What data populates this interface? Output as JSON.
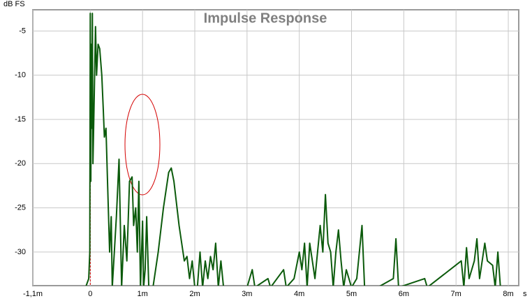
{
  "chart_data": {
    "type": "line",
    "title": "Impulse Response",
    "y_unit": "dB FS",
    "x_unit": "s",
    "color": "#0b5a0b",
    "grid": true,
    "xlim": [
      -1.1,
      8.2
    ],
    "ylim": [
      -33.8,
      -2.6
    ],
    "xticks": [
      {
        "value": -1.1,
        "label": "-1,1m"
      },
      0,
      {
        "value": 1,
        "label": "1m"
      },
      {
        "value": 2,
        "label": "2m"
      },
      {
        "value": 3,
        "label": "3m"
      },
      {
        "value": 4,
        "label": "4m"
      },
      {
        "value": 5,
        "label": "5m"
      },
      {
        "value": 6,
        "label": "6m"
      },
      {
        "value": 7,
        "label": "7m"
      },
      {
        "value": 8,
        "label": "8m"
      }
    ],
    "yticks": [
      -5,
      -10,
      -15,
      -20,
      -25,
      -30
    ],
    "x": [
      -0.09,
      -0.03,
      -0.01,
      0,
      0.01,
      0.02,
      0.03,
      0.04,
      0.05,
      0.07,
      0.1,
      0.12,
      0.15,
      0.18,
      0.22,
      0.25,
      0.27,
      0.3,
      0.33,
      0.37,
      0.4,
      0.42,
      0.5,
      0.55,
      0.58,
      0.6,
      0.65,
      0.7,
      0.75,
      0.8,
      0.83,
      0.87,
      0.9,
      0.93,
      0.96,
      1.0,
      1.02,
      1.05,
      1.08,
      1.12,
      1.2,
      1.3,
      1.4,
      1.5,
      1.55,
      1.6,
      1.7,
      1.8,
      1.85,
      1.9,
      1.95,
      2.0,
      2.05,
      2.1,
      2.15,
      2.2,
      2.25,
      2.3,
      2.35,
      2.4,
      2.45,
      2.5,
      2.55,
      3.0,
      3.1,
      3.15,
      3.4,
      3.45,
      3.7,
      3.75,
      3.9,
      4.0,
      4.05,
      4.1,
      4.15,
      4.2,
      4.25,
      4.3,
      4.4,
      4.45,
      4.5,
      4.55,
      4.6,
      4.65,
      4.7,
      4.75,
      4.8,
      4.85,
      4.9,
      5.0,
      5.1,
      5.2,
      5.25,
      5.5,
      5.8,
      5.85,
      5.9,
      6.4,
      6.45,
      7.1,
      7.15,
      7.2,
      7.25,
      7.35,
      7.4,
      7.45,
      7.55,
      7.6,
      7.7,
      7.75,
      7.8,
      7.85,
      8.2
    ],
    "values": [
      -34,
      -33,
      -30,
      -3,
      -22,
      -6.5,
      -16,
      -3,
      -20,
      -14,
      -4.5,
      -10,
      -6.5,
      -7,
      -10,
      -14,
      -17,
      -16,
      -22,
      -30,
      -26,
      -34,
      -26,
      -19.5,
      -28,
      -34,
      -27,
      -31,
      -22,
      -21.5,
      -27,
      -25,
      -30,
      -22,
      -34,
      -26.5,
      -34,
      -32,
      -26,
      -34,
      -34,
      -30,
      -25,
      -21,
      -20.5,
      -22,
      -27,
      -31,
      -30.5,
      -33,
      -31,
      -34,
      -34,
      -30,
      -34,
      -31,
      -33,
      -30.5,
      -32,
      -29,
      -34,
      -31,
      -34,
      -34,
      -32,
      -34,
      -33,
      -34,
      -32,
      -34,
      -33,
      -30,
      -32,
      -29,
      -34,
      -29,
      -31,
      -33,
      -27,
      -30,
      -23.5,
      -29,
      -30,
      -34,
      -30,
      -27.5,
      -31,
      -34,
      -32,
      -34,
      -33,
      -27,
      -34,
      -34,
      -33,
      -28.5,
      -34,
      -33,
      -34,
      -31,
      -34,
      -29.5,
      -33,
      -31,
      -28.5,
      -33,
      -29,
      -31,
      -31.5,
      -34,
      -30,
      -34,
      -34
    ]
  }
}
